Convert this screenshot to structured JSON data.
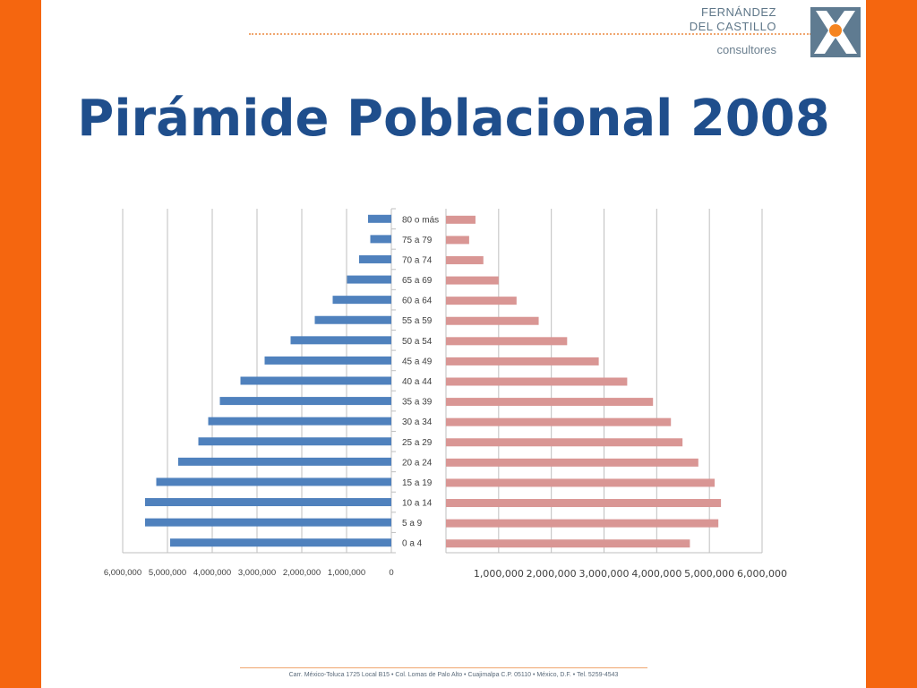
{
  "slide": {
    "title": "Pirámide Poblacional 2008",
    "footer": "Carr. México-Toluca 1725 Local B15 • Col. Lomas de Palo Alto • Cuajimalpa C.P. 05110 • México, D.F. • Tel. 5259-4543"
  },
  "logo": {
    "line1": "FERNÁNDEZ",
    "line2": "DEL CASTILLO",
    "line3": "consultores"
  },
  "colors": {
    "left_series": "#4f81bd",
    "right_series": "#d99694",
    "title": "#1f4e8c",
    "accent": "#f5660f"
  },
  "chart_data": {
    "type": "bar",
    "orientation": "horizontal",
    "categories": [
      "80 o más",
      "75 a 79",
      "70 a 74",
      "65 a 69",
      "60 a 64",
      "55 a 59",
      "50 a 54",
      "45 a 49",
      "40 a 44",
      "35 a 39",
      "30 a 34",
      "25 a 29",
      "20 a 24",
      "15 a 19",
      "10 a 14",
      "5 a 9",
      "0 a 4"
    ],
    "series": [
      {
        "values": [
          520000,
          470000,
          720000,
          990000,
          1310000,
          1710000,
          2250000,
          2830000,
          3370000,
          3830000,
          4090000,
          4310000,
          4760000,
          5250000,
          5500000,
          5500000,
          4940000
        ]
      },
      {
        "values": [
          560000,
          440000,
          710000,
          1000000,
          1340000,
          1760000,
          2300000,
          2900000,
          3440000,
          3930000,
          4270000,
          4490000,
          4790000,
          5100000,
          5220000,
          5170000,
          4630000
        ]
      }
    ],
    "left_axis": {
      "ticks": [
        6000000,
        5000000,
        4000000,
        3000000,
        2000000,
        1000000,
        0
      ],
      "tick_labels": [
        "6,000,000",
        "5,000,000",
        "4,000,000",
        "3,000,000",
        "2,000,000",
        "1,000,000",
        "0"
      ],
      "xlim": [
        0,
        6000000
      ]
    },
    "right_axis": {
      "ticks": [
        1000000,
        2000000,
        3000000,
        4000000,
        5000000,
        6000000
      ],
      "tick_labels": [
        "1,000,000",
        "2,000,000",
        "3,000,000",
        "4,000,000",
        "5,000,000",
        "6,000,000"
      ],
      "xlim": [
        0,
        6000000
      ]
    },
    "grid": true
  }
}
